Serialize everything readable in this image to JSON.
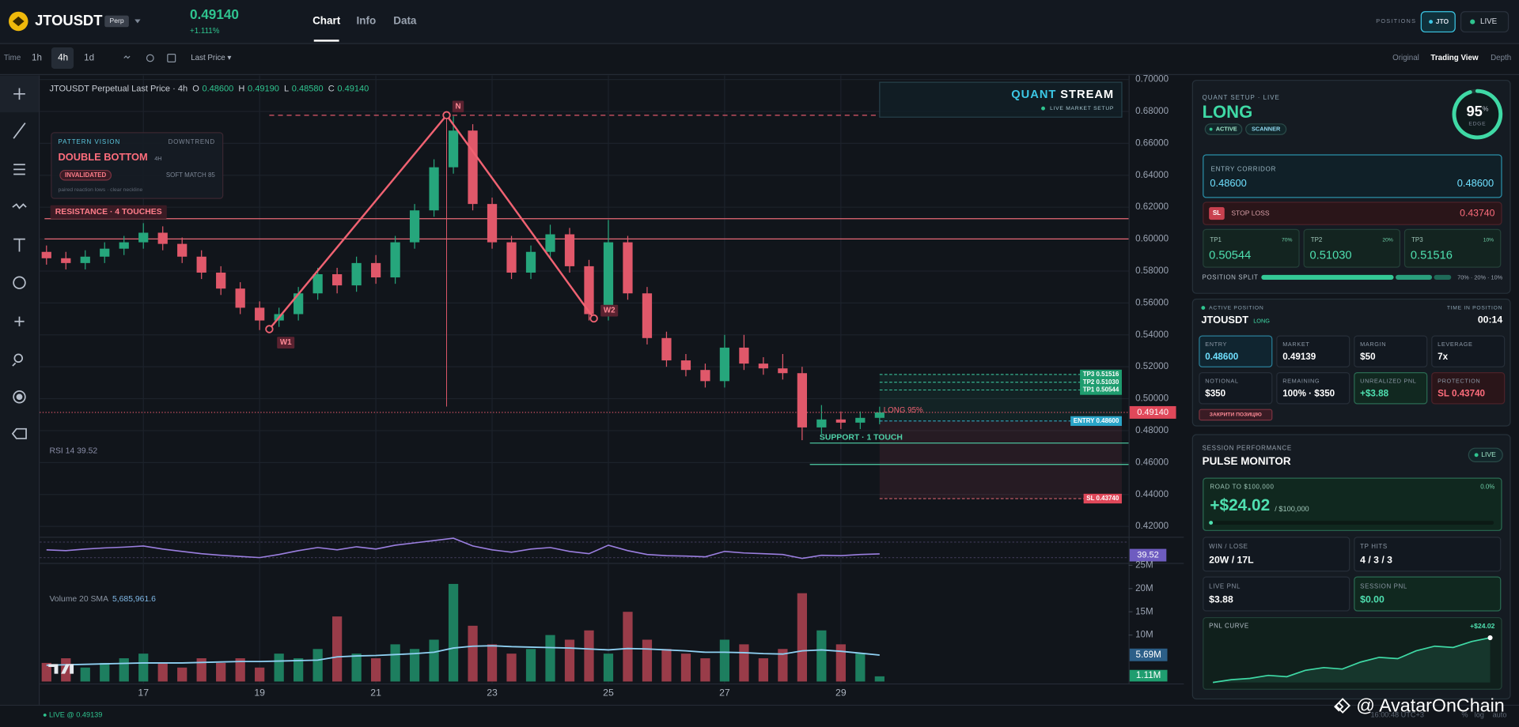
{
  "header": {
    "symbol": "JTOUSDT",
    "badge": "Perp",
    "price": "0.49140",
    "change": "+1.111%",
    "tabs": [
      "Chart",
      "Info",
      "Data"
    ],
    "positions_label": "POSITIONS",
    "position_chip": "JTO",
    "live_chip": "LIVE"
  },
  "toolbar": {
    "time_label": "Time",
    "intervals": [
      "1h",
      "4h",
      "1d"
    ],
    "price_source": "Last Price ▾",
    "views": [
      "Original",
      "Trading View",
      "Depth"
    ]
  },
  "price_chart": {
    "legend": "JTOUSDT Perpetual Last Price · 4h",
    "ohlc": [
      {
        "key": "O",
        "value": "0.48600"
      },
      {
        "key": "H",
        "value": "0.49190"
      },
      {
        "key": "L",
        "value": "0.48580"
      },
      {
        "key": "C",
        "value": "0.49140"
      }
    ],
    "ylim": [
      0.415,
      0.7025
    ],
    "yticks": [
      {
        "value": 0.7,
        "label": "0.70000"
      },
      {
        "value": 0.68,
        "label": "0.68000"
      },
      {
        "value": 0.66,
        "label": "0.66000"
      },
      {
        "value": 0.64,
        "label": "0.64000"
      },
      {
        "value": 0.62,
        "label": "0.62000"
      },
      {
        "value": 0.6,
        "label": "0.60000"
      },
      {
        "value": 0.58,
        "label": "0.58000"
      },
      {
        "value": 0.56,
        "label": "0.56000"
      },
      {
        "value": 0.54,
        "label": "0.54000"
      },
      {
        "value": 0.52,
        "label": "0.52000"
      },
      {
        "value": 0.5,
        "label": "0.50000"
      },
      {
        "value": 0.48,
        "label": "0.48000"
      },
      {
        "value": 0.46,
        "label": "0.46000"
      },
      {
        "value": 0.44,
        "label": "0.44000"
      },
      {
        "value": 0.42,
        "label": "0.42000"
      }
    ],
    "x_labels": [
      "17",
      "19",
      "21",
      "23",
      "25",
      "27",
      "29"
    ],
    "up_color": "#26a67c",
    "down_color": "#e0586a",
    "open": [
      0.592,
      0.588,
      0.585,
      0.589,
      0.594,
      0.598,
      0.604,
      0.597,
      0.589,
      0.579,
      0.569,
      0.557,
      0.549,
      0.553,
      0.566,
      0.578,
      0.571,
      0.585,
      0.576,
      0.598,
      0.618,
      0.645,
      0.668,
      0.622,
      0.598,
      0.579,
      0.592,
      0.603,
      0.583,
      0.553,
      0.598,
      0.566,
      0.538,
      0.524,
      0.518,
      0.511,
      0.532,
      0.522,
      0.519,
      0.516,
      0.482,
      0.487,
      0.485,
      0.488
    ],
    "high": [
      0.596,
      0.592,
      0.593,
      0.598,
      0.602,
      0.61,
      0.608,
      0.601,
      0.593,
      0.583,
      0.573,
      0.561,
      0.557,
      0.57,
      0.582,
      0.582,
      0.589,
      0.59,
      0.602,
      0.622,
      0.65,
      0.677,
      0.672,
      0.626,
      0.602,
      0.596,
      0.609,
      0.607,
      0.587,
      0.612,
      0.602,
      0.57,
      0.542,
      0.528,
      0.522,
      0.54,
      0.54,
      0.526,
      0.528,
      0.52,
      0.496,
      0.492,
      0.492,
      0.495
    ],
    "low": [
      0.584,
      0.581,
      0.581,
      0.585,
      0.59,
      0.594,
      0.593,
      0.585,
      0.575,
      0.565,
      0.553,
      0.543,
      0.545,
      0.549,
      0.562,
      0.566,
      0.567,
      0.572,
      0.572,
      0.594,
      0.614,
      0.641,
      0.618,
      0.594,
      0.575,
      0.575,
      0.588,
      0.579,
      0.549,
      0.549,
      0.562,
      0.534,
      0.52,
      0.514,
      0.507,
      0.507,
      0.518,
      0.515,
      0.512,
      0.474,
      0.478,
      0.481,
      0.481,
      0.484
    ],
    "close": [
      0.588,
      0.585,
      0.589,
      0.594,
      0.598,
      0.604,
      0.597,
      0.589,
      0.579,
      0.569,
      0.557,
      0.549,
      0.553,
      0.566,
      0.578,
      0.571,
      0.585,
      0.576,
      0.598,
      0.618,
      0.645,
      0.668,
      0.622,
      0.598,
      0.579,
      0.592,
      0.603,
      0.583,
      0.553,
      0.598,
      0.566,
      0.538,
      0.524,
      0.518,
      0.511,
      0.532,
      0.522,
      0.519,
      0.516,
      0.482,
      0.487,
      0.485,
      0.488,
      0.4914
    ],
    "last_price_tag": "0.49140",
    "resistance": {
      "label": "RESISTANCE · 4 TOUCHES",
      "levels": [
        0.6128,
        0.6001
      ]
    },
    "support": {
      "label": "SUPPORT · 1 TOUCH",
      "levels": [
        0.4722,
        0.4588
      ]
    },
    "neckline": 0.6776,
    "pattern_points": [
      {
        "label": "W1",
        "value": 0.5436
      },
      {
        "label": "N",
        "value": 0.6776
      },
      {
        "label": "W2",
        "value": 0.5503
      }
    ],
    "signal": "LONG 95%",
    "levels": [
      {
        "label": "ENTRY 0.48600",
        "value": 0.486
      },
      {
        "label": "SL 0.43740",
        "value": 0.4374
      },
      {
        "label": "TP3 0.51516",
        "value": 0.51516
      },
      {
        "label": "TP2 0.51030",
        "value": 0.5103
      },
      {
        "label": "TP1 0.50544",
        "value": 0.50544
      }
    ]
  },
  "pattern_card": {
    "title": "PATTERN VISION",
    "trend": "DOWNTREND",
    "pattern": "DOUBLE BOTTOM",
    "timeframe": "4H",
    "status": "INVALIDATED",
    "match": "SOFT MATCH 85",
    "note": "paired reaction lows · clear neckline"
  },
  "quant_stream": {
    "title_a": "QUANT",
    "title_b": "STREAM",
    "subtitle": "LIVE MARKET SETUP"
  },
  "rsi": {
    "label": "RSI 14 39.52",
    "tag": "39.52",
    "ylim": [
      0,
      100
    ],
    "values": [
      50,
      48,
      52,
      55,
      57,
      60,
      52,
      46,
      40,
      36,
      33,
      30,
      38,
      48,
      56,
      50,
      58,
      52,
      62,
      68,
      74,
      80,
      60,
      50,
      44,
      52,
      56,
      46,
      40,
      62,
      48,
      38,
      35,
      34,
      32,
      46,
      42,
      40,
      38,
      28,
      36,
      35,
      38,
      39.52
    ]
  },
  "volume": {
    "label": "Volume 20 SMA",
    "sma_value": "5,685,961.6",
    "ylim": [
      0,
      25000000
    ],
    "yticks": [
      {
        "value": 10000000,
        "label": "10M"
      },
      {
        "value": 15000000,
        "label": "15M"
      },
      {
        "value": 20000000,
        "label": "20M"
      },
      {
        "value": 25000000,
        "label": "25M"
      }
    ],
    "values": [
      4000000,
      5000000,
      3000000,
      4000000,
      5000000,
      6000000,
      4000000,
      3000000,
      5000000,
      4000000,
      5000000,
      3000000,
      6000000,
      5000000,
      7000000,
      14000000,
      6000000,
      5000000,
      8000000,
      7000000,
      9000000,
      21000000,
      12000000,
      8000000,
      6000000,
      7000000,
      10000000,
      9000000,
      11000000,
      6000000,
      15000000,
      9000000,
      7000000,
      6000000,
      5000000,
      9000000,
      8000000,
      5000000,
      7000000,
      19000000,
      11000000,
      8000000,
      6000000,
      1110000
    ],
    "sma": [
      3500000,
      3600000,
      3700000,
      3800000,
      3900000,
      4000000,
      4000000,
      4000000,
      4100000,
      4200000,
      4300000,
      4300000,
      4400000,
      4500000,
      4600000,
      5300000,
      5500000,
      5600000,
      5800000,
      6000000,
      6300000,
      7200000,
      7600000,
      7700000,
      7500000,
      7400000,
      7300000,
      7200000,
      7000000,
      6800000,
      7100000,
      7000000,
      6800000,
      6600000,
      6300000,
      6300000,
      6200000,
      6000000,
      5900000,
      6600000,
      6800000,
      6500000,
      6100000,
      5685961.6
    ],
    "sma_tag": "5.69M",
    "last_tag": "1.11M"
  },
  "setup_card": {
    "title": "QUANT SETUP · LIVE",
    "side": "LONG",
    "chips": [
      "ACTIVE",
      "SCANNER"
    ],
    "edge": 95,
    "edge_unit": "%",
    "edge_label": "EDGE",
    "corridor_label": "ENTRY CORRIDOR",
    "corridor_low": "0.48600",
    "corridor_high": "0.48600",
    "sl_badge": "SL",
    "sl_label": "STOP LOSS",
    "sl_value": "0.43740",
    "tps": [
      {
        "name": "TP1",
        "share": "70%",
        "price": "0.50544"
      },
      {
        "name": "TP2",
        "share": "20%",
        "price": "0.51030"
      },
      {
        "name": "TP3",
        "share": "10%",
        "price": "0.51516"
      }
    ],
    "split_label": "POSITION SPLIT",
    "split": [
      70,
      20,
      10
    ],
    "split_text": "70% · 20% · 10%"
  },
  "position_card": {
    "title": "ACTIVE POSITION",
    "time_label": "TIME IN POSITION",
    "symbol": "JTOUSDT",
    "side": "LONG",
    "time": "00:14",
    "cells": [
      {
        "label": "ENTRY",
        "value": "0.48600"
      },
      {
        "label": "MARKET",
        "value": "0.49139"
      },
      {
        "label": "MARGIN",
        "value": "$50"
      },
      {
        "label": "LEVERAGE",
        "value": "7x"
      },
      {
        "label": "NOTIONAL",
        "value": "$350"
      },
      {
        "label": "REMAINING",
        "value": "100% · $350"
      },
      {
        "label": "UNREALIZED PNL",
        "value": "+$3.88"
      },
      {
        "label": "PROTECTION",
        "value": "SL 0.43740"
      }
    ],
    "close_button": "ЗАКРИТИ ПОЗИЦІЮ"
  },
  "performance_card": {
    "kicker": "SESSION PERFORMANCE",
    "title": "PULSE MONITOR",
    "live": "LIVE",
    "road_label": "ROAD TO $100,000",
    "road_pct": "0.0%",
    "road_value": "+$24.02",
    "road_target": "/ $100,000",
    "stats": [
      {
        "label": "WIN / LOSE",
        "value": "20W / 17L"
      },
      {
        "label": "TP HITS",
        "value": "4 / 3 / 3"
      },
      {
        "label": "LIVE PNL",
        "value": "$3.88"
      },
      {
        "label": "SESSION PNL",
        "value": "$0.00"
      }
    ],
    "curve_label": "PNL CURVE",
    "curve_value": "+$24.02",
    "curve_ylim": [
      0,
      26
    ],
    "curve": [
      0,
      1.5,
      2.2,
      3.8,
      3.1,
      6.5,
      8,
      7.2,
      11,
      13.5,
      12.8,
      17,
      19.5,
      18.8,
      22,
      24.02
    ]
  },
  "footer": {
    "live": "● LIVE @ 0.49139",
    "time": "16:00:48 UTC+3",
    "scale_opts": [
      "%",
      "log",
      "auto"
    ],
    "watermark": "@ AvatarOnChain"
  }
}
